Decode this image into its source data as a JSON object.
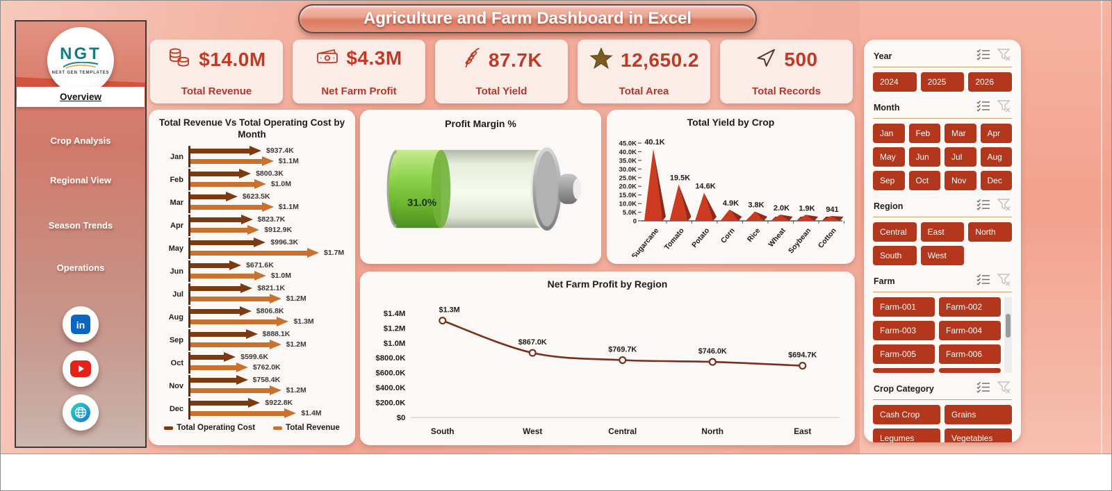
{
  "title": "Agriculture and Farm Dashboard in Excel",
  "sidebar": {
    "logo_text": "NGT",
    "logo_subtext": "NEXT GEN TEMPLATES",
    "nav_items": [
      {
        "label": "Overview",
        "active": true
      },
      {
        "label": "Crop Analysis",
        "active": false
      },
      {
        "label": "Regional View",
        "active": false
      },
      {
        "label": "Season Trends",
        "active": false
      },
      {
        "label": "Operations",
        "active": false
      }
    ],
    "social_icons": [
      "linkedin-icon",
      "youtube-icon",
      "website-globe-icon"
    ]
  },
  "kpis": [
    {
      "icon": "coins-icon",
      "value": "$14.0M",
      "label": "Total Revenue"
    },
    {
      "icon": "banknote-icon",
      "value": "$4.3M",
      "label": "Net Farm Profit"
    },
    {
      "icon": "wheat-icon",
      "value": "87.7K",
      "label": "Total Yield"
    },
    {
      "icon": "star-icon",
      "value": "12,650.2",
      "label": "Total Area"
    },
    {
      "icon": "paper-plane-icon",
      "value": "500",
      "label": "Total Records"
    }
  ],
  "chart_data": [
    {
      "id": "revenue_vs_cost",
      "type": "bar",
      "title": "Total Revenue Vs Total Operating Cost by Month",
      "orientation": "horizontal-arrows",
      "categories": [
        "Jan",
        "Feb",
        "Mar",
        "Apr",
        "May",
        "Jun",
        "Jul",
        "Aug",
        "Sep",
        "Oct",
        "Nov",
        "Dec"
      ],
      "values_unit": "thousand USD",
      "series": [
        {
          "name": "Total Operating Cost",
          "color": "#7b3a10",
          "values": [
            937.4,
            800.3,
            623.5,
            823.7,
            996.3,
            671.6,
            821.1,
            806.8,
            888.1,
            599.6,
            758.4,
            922.8
          ],
          "labels": [
            "$937.4K",
            "$800.3K",
            "$623.5K",
            "$823.7K",
            "$996.3K",
            "$671.6K",
            "$821.1K",
            "$806.8K",
            "$888.1K",
            "$599.6K",
            "$758.4K",
            "$922.8K"
          ]
        },
        {
          "name": "Total Revenue",
          "color": "#c9722f",
          "values": [
            1100,
            1000,
            1100,
            912.9,
            1700,
            1000,
            1200,
            1300,
            1200,
            762.0,
            1200,
            1400
          ],
          "labels": [
            "$1.1M",
            "$1.0M",
            "$1.1M",
            "$912.9K",
            "$1.7M",
            "$1.0M",
            "$1.2M",
            "$1.3M",
            "$1.2M",
            "$762.0K",
            "$1.2M",
            "$1.4M"
          ]
        }
      ],
      "legend_position": "bottom"
    },
    {
      "id": "profit_margin",
      "type": "gauge",
      "style": "battery",
      "title": "Profit Margin %",
      "value": 31.0,
      "max": 100,
      "label": "31.0%",
      "fill_color": "#86c440"
    },
    {
      "id": "yield_by_crop",
      "type": "bar",
      "style": "pyramid-3d",
      "title": "Total Yield by Crop",
      "categories": [
        "Sugarcane",
        "Tomato",
        "Potato",
        "Corn",
        "Rice",
        "Wheat",
        "Soybean",
        "Cotton"
      ],
      "values": [
        40100,
        19500,
        14600,
        4900,
        3800,
        2000,
        1900,
        941
      ],
      "labels": [
        "40.1K",
        "19.5K",
        "14.6K",
        "4.9K",
        "3.8K",
        "2.0K",
        "1.9K",
        "941"
      ],
      "y_ticks": [
        "45.0K",
        "40.0K",
        "35.0K",
        "30.0K",
        "25.0K",
        "20.0K",
        "15.0K",
        "10.0K",
        "5.0K",
        "0"
      ],
      "ylim": [
        0,
        45000
      ],
      "color": "#cc3a20"
    },
    {
      "id": "profit_by_region",
      "type": "line",
      "title": "Net Farm Profit by Region",
      "categories": [
        "South",
        "West",
        "Central",
        "North",
        "East"
      ],
      "values": [
        1300,
        867.0,
        769.7,
        746.0,
        694.7
      ],
      "values_unit": "thousand USD",
      "labels": [
        "$1.3M",
        "$867.0K",
        "$769.7K",
        "$746.0K",
        "$694.7K"
      ],
      "y_ticks": [
        "$1.4M",
        "$1.2M",
        "$1.0M",
        "$800.0K",
        "$600.0K",
        "$400.0K",
        "$200.0K",
        "$0"
      ],
      "ylim": [
        0,
        1400
      ],
      "color": "#7c2d1c",
      "markers": "open-circle"
    }
  ],
  "slicers": [
    {
      "title": "Year",
      "cols": 3,
      "items": [
        "2024",
        "2025",
        "2026"
      ]
    },
    {
      "title": "Month",
      "cols": 4,
      "items": [
        "Jan",
        "Feb",
        "Mar",
        "Apr",
        "May",
        "Jun",
        "Jul",
        "Aug",
        "Sep",
        "Oct",
        "Nov",
        "Dec"
      ]
    },
    {
      "title": "Region",
      "cols": 3,
      "items": [
        "Central",
        "East",
        "North",
        "South",
        "West"
      ]
    },
    {
      "title": "Farm",
      "cols": 2,
      "items": [
        "Farm-001",
        "Farm-002",
        "Farm-003",
        "Farm-004",
        "Farm-005",
        "Farm-006"
      ],
      "scrollbar": true,
      "cut_row": true
    },
    {
      "title": "Crop Category",
      "cols": 2,
      "items": [
        "Cash Crop",
        "Grains",
        "Legumes",
        "Vegetables"
      ]
    }
  ],
  "colors": {
    "slicer_button": "#b2371d",
    "kpi_value": "#c23a24",
    "bar_cost": "#7b3a10",
    "bar_revenue": "#c9722f",
    "pyramid": "#cc3a20",
    "line": "#7c2d1c",
    "gauge_fill": "#86c440",
    "background": "#f0a592"
  }
}
